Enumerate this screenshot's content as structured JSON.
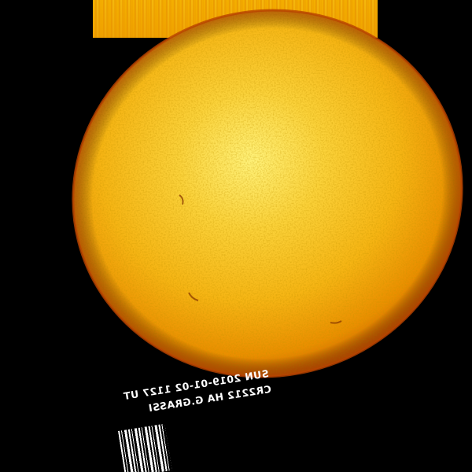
{
  "image": {
    "subject": "sun",
    "colors": {
      "background": "#000000",
      "disk_center": "#fff27a",
      "disk_mid": "#f6b514",
      "disk_limb": "#d46a00",
      "limb_rim": "#b84400"
    }
  },
  "caption": {
    "line1": "SUN 2019-01-02 1127 UT",
    "line2": "CR2212  HA  G.GRASSI"
  }
}
